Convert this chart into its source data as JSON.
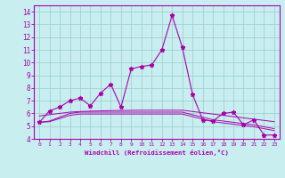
{
  "xlabel": "Windchill (Refroidissement éolien,°C)",
  "bg_color": "#c8eef0",
  "line_color": "#aa00aa",
  "grid_color": "#99cccc",
  "xlim": [
    -0.5,
    23.5
  ],
  "ylim": [
    4,
    14.5
  ],
  "yticks": [
    4,
    5,
    6,
    7,
    8,
    9,
    10,
    11,
    12,
    13,
    14
  ],
  "xticks": [
    0,
    1,
    2,
    3,
    4,
    5,
    6,
    7,
    8,
    9,
    10,
    11,
    12,
    13,
    14,
    15,
    16,
    17,
    18,
    19,
    20,
    21,
    22,
    23
  ],
  "x_main": [
    0,
    1,
    2,
    3,
    4,
    5,
    6,
    7,
    8,
    9,
    10,
    11,
    12,
    13,
    14,
    15,
    16,
    17,
    18,
    19,
    20,
    21,
    22,
    23
  ],
  "y_main": [
    5.3,
    6.2,
    6.5,
    7.0,
    7.2,
    6.6,
    7.6,
    8.3,
    6.5,
    9.5,
    9.7,
    9.8,
    11.0,
    13.7,
    11.2,
    7.5,
    5.5,
    5.4,
    6.0,
    6.1,
    5.1,
    5.5,
    4.3,
    4.3
  ],
  "x_line2": [
    0,
    1,
    2,
    3,
    4,
    5,
    6,
    7,
    8,
    9,
    10,
    11,
    12,
    13,
    14,
    15,
    16,
    17,
    18,
    19,
    20,
    21,
    22,
    23
  ],
  "y_line2": [
    5.8,
    5.9,
    6.0,
    6.1,
    6.15,
    6.18,
    6.2,
    6.22,
    6.23,
    6.24,
    6.25,
    6.25,
    6.25,
    6.25,
    6.25,
    6.15,
    6.05,
    5.95,
    5.85,
    5.75,
    5.65,
    5.55,
    5.45,
    5.35
  ],
  "x_line3": [
    0,
    1,
    2,
    3,
    4,
    5,
    6,
    7,
    8,
    9,
    10,
    11,
    12,
    13,
    14,
    15,
    16,
    17,
    18,
    19,
    20,
    21,
    22,
    23
  ],
  "y_line3": [
    5.3,
    5.4,
    5.7,
    6.0,
    6.1,
    6.1,
    6.1,
    6.1,
    6.1,
    6.1,
    6.1,
    6.1,
    6.1,
    6.1,
    6.1,
    5.9,
    5.7,
    5.5,
    5.4,
    5.3,
    5.2,
    5.1,
    4.95,
    4.8
  ],
  "x_line4": [
    0,
    1,
    2,
    3,
    4,
    5,
    6,
    7,
    8,
    9,
    10,
    11,
    12,
    13,
    14,
    15,
    16,
    17,
    18,
    19,
    20,
    21,
    22,
    23
  ],
  "y_line4": [
    5.3,
    5.35,
    5.6,
    5.85,
    5.95,
    5.95,
    5.95,
    5.95,
    5.95,
    5.95,
    5.95,
    5.95,
    5.95,
    5.95,
    5.95,
    5.75,
    5.55,
    5.35,
    5.25,
    5.15,
    5.05,
    4.95,
    4.8,
    4.65
  ]
}
